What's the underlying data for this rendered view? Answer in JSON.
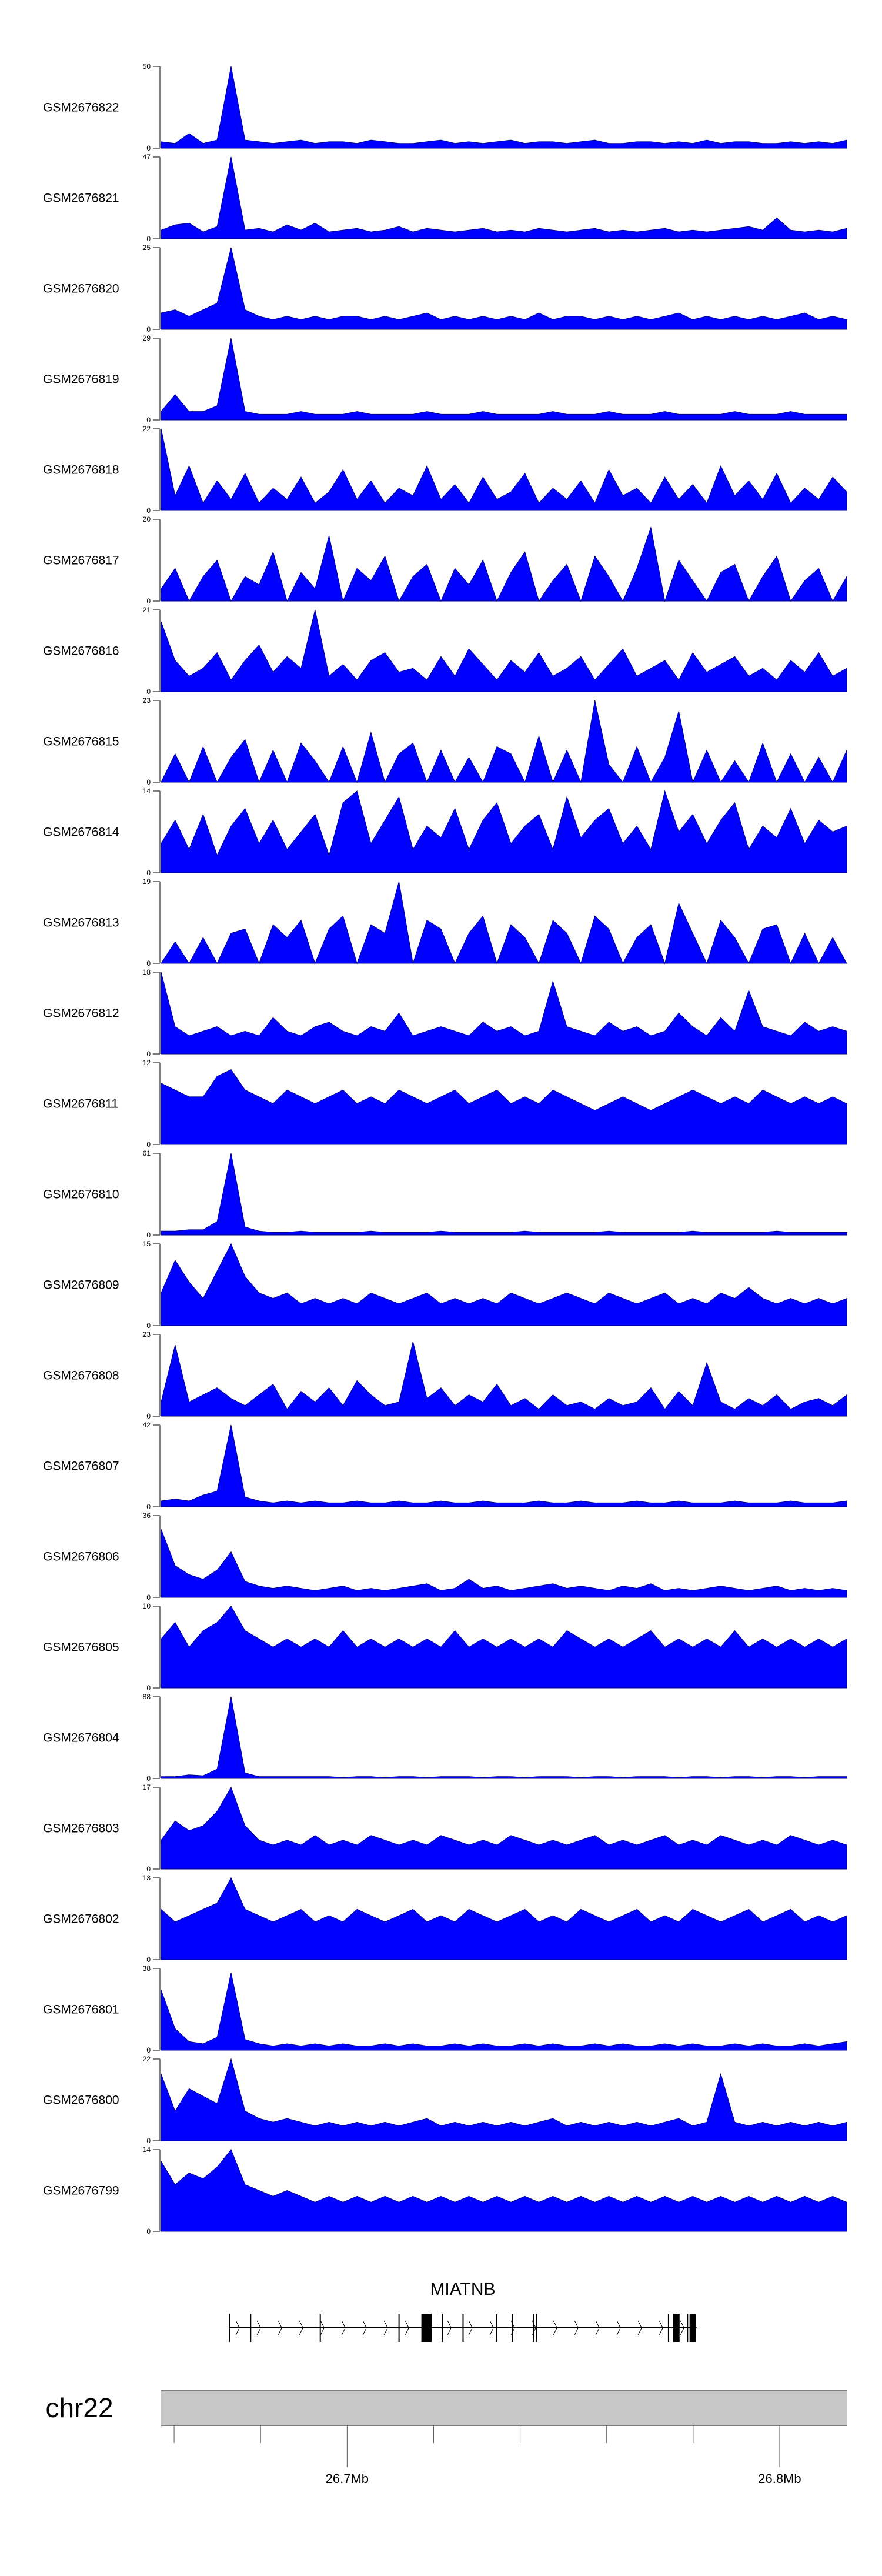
{
  "chart_data": {
    "type": "area",
    "title": "",
    "chromosome": "chr22",
    "xlim_mb": [
      26.657,
      26.8155
    ],
    "x_major_ticks": [
      {
        "value": 26.7,
        "label": "26.7Mb"
      },
      {
        "value": 26.8,
        "label": "26.8Mb"
      }
    ],
    "x_minor_ticks": [
      26.68,
      26.72,
      26.74,
      26.76,
      26.78
    ],
    "fill_color": "#0000ff",
    "stroke_color": "#00008b",
    "gene": {
      "name": "MIATNB",
      "strand": "+",
      "start": 26.6728,
      "end": 26.7808,
      "exons": [
        [
          26.6728,
          26.673
        ],
        [
          26.6777,
          26.6779
        ],
        [
          26.6938,
          26.694
        ],
        [
          26.712,
          26.7122
        ],
        [
          26.7173,
          26.7197
        ],
        [
          26.722,
          26.7223
        ],
        [
          26.7268,
          26.727
        ],
        [
          26.7345,
          26.7347
        ],
        [
          26.7382,
          26.7384
        ],
        [
          26.7431,
          26.7432
        ],
        [
          26.7438,
          26.7439
        ],
        [
          26.7743,
          26.7744
        ],
        [
          26.7755,
          26.777
        ],
        [
          26.7787,
          26.7788
        ],
        [
          26.7793,
          26.7808
        ]
      ]
    },
    "series": [
      {
        "name": "GSM2676822",
        "ymax": 50,
        "values": [
          4,
          3,
          9,
          3,
          5,
          50,
          5,
          4,
          3,
          4,
          5,
          3,
          4,
          4,
          3,
          5,
          4,
          3,
          3,
          4,
          5,
          3,
          4,
          3,
          4,
          5,
          3,
          4,
          4,
          3,
          4,
          5,
          3,
          3,
          4,
          4,
          3,
          4,
          3,
          5,
          3,
          4,
          4,
          3,
          3,
          4,
          3,
          4,
          3,
          5
        ]
      },
      {
        "name": "GSM2676821",
        "ymax": 47,
        "values": [
          5,
          8,
          9,
          4,
          7,
          47,
          5,
          6,
          4,
          8,
          5,
          9,
          4,
          5,
          6,
          4,
          5,
          7,
          4,
          6,
          5,
          4,
          5,
          6,
          4,
          5,
          4,
          6,
          5,
          4,
          5,
          6,
          4,
          5,
          4,
          5,
          6,
          4,
          5,
          4,
          5,
          6,
          7,
          5,
          12,
          5,
          4,
          5,
          4,
          6
        ]
      },
      {
        "name": "GSM2676820",
        "ymax": 25,
        "values": [
          5,
          6,
          4,
          6,
          8,
          25,
          6,
          4,
          3,
          4,
          3,
          4,
          3,
          4,
          4,
          3,
          4,
          3,
          4,
          5,
          3,
          4,
          3,
          4,
          3,
          4,
          3,
          5,
          3,
          4,
          4,
          3,
          4,
          3,
          4,
          3,
          4,
          5,
          3,
          4,
          3,
          4,
          3,
          4,
          3,
          4,
          5,
          3,
          4,
          3
        ]
      },
      {
        "name": "GSM2676819",
        "ymax": 29,
        "values": [
          3,
          9,
          3,
          3,
          5,
          29,
          3,
          2,
          2,
          2,
          3,
          2,
          2,
          2,
          3,
          2,
          2,
          2,
          2,
          3,
          2,
          2,
          2,
          3,
          2,
          2,
          2,
          2,
          3,
          2,
          2,
          2,
          3,
          2,
          2,
          2,
          3,
          2,
          2,
          2,
          2,
          3,
          2,
          2,
          2,
          3,
          2,
          2,
          2,
          2
        ]
      },
      {
        "name": "GSM2676818",
        "ymax": 22,
        "values": [
          22,
          4,
          12,
          2,
          8,
          3,
          10,
          2,
          6,
          3,
          9,
          2,
          5,
          11,
          3,
          8,
          2,
          6,
          4,
          12,
          3,
          7,
          2,
          9,
          3,
          5,
          10,
          2,
          6,
          3,
          8,
          2,
          11,
          4,
          6,
          2,
          9,
          3,
          7,
          2,
          12,
          4,
          8,
          3,
          10,
          2,
          6,
          3,
          9,
          5
        ]
      },
      {
        "name": "GSM2676817",
        "ymax": 20,
        "values": [
          3,
          8,
          0,
          6,
          10,
          0,
          6,
          4,
          12,
          0,
          7,
          3,
          16,
          0,
          8,
          5,
          11,
          0,
          6,
          9,
          0,
          8,
          4,
          10,
          0,
          7,
          12,
          0,
          5,
          9,
          0,
          11,
          6,
          0,
          8,
          18,
          0,
          10,
          5,
          0,
          7,
          9,
          0,
          6,
          11,
          0,
          5,
          8,
          0,
          6
        ]
      },
      {
        "name": "GSM2676816",
        "ymax": 21,
        "values": [
          18,
          8,
          4,
          6,
          10,
          3,
          8,
          12,
          5,
          9,
          6,
          21,
          4,
          7,
          3,
          8,
          10,
          5,
          6,
          3,
          9,
          4,
          11,
          7,
          3,
          8,
          5,
          10,
          4,
          6,
          9,
          3,
          7,
          11,
          4,
          6,
          8,
          3,
          10,
          5,
          7,
          9,
          4,
          6,
          3,
          8,
          5,
          10,
          4,
          6
        ]
      },
      {
        "name": "GSM2676815",
        "ymax": 23,
        "values": [
          0,
          8,
          0,
          10,
          0,
          7,
          12,
          0,
          9,
          0,
          11,
          6,
          0,
          10,
          0,
          14,
          0,
          8,
          11,
          0,
          9,
          0,
          7,
          0,
          10,
          8,
          0,
          13,
          0,
          9,
          0,
          23,
          5,
          0,
          10,
          0,
          7,
          20,
          0,
          9,
          0,
          6,
          0,
          11,
          0,
          8,
          0,
          7,
          0,
          9
        ]
      },
      {
        "name": "GSM2676814",
        "ymax": 14,
        "values": [
          5,
          9,
          4,
          10,
          3,
          8,
          11,
          5,
          9,
          4,
          7,
          10,
          3,
          12,
          14,
          5,
          9,
          13,
          4,
          8,
          6,
          11,
          4,
          9,
          12,
          5,
          8,
          10,
          4,
          13,
          6,
          9,
          11,
          5,
          8,
          4,
          14,
          7,
          10,
          5,
          9,
          12,
          4,
          8,
          6,
          11,
          5,
          9,
          7,
          8
        ]
      },
      {
        "name": "GSM2676813",
        "ymax": 19,
        "values": [
          0,
          5,
          0,
          6,
          0,
          7,
          8,
          0,
          9,
          6,
          10,
          0,
          8,
          11,
          0,
          9,
          7,
          19,
          0,
          10,
          8,
          0,
          7,
          11,
          0,
          9,
          6,
          0,
          10,
          7,
          0,
          11,
          8,
          0,
          6,
          9,
          0,
          14,
          7,
          0,
          10,
          6,
          0,
          8,
          9,
          0,
          7,
          0,
          6,
          0
        ]
      },
      {
        "name": "GSM2676812",
        "ymax": 18,
        "values": [
          18,
          6,
          4,
          5,
          6,
          4,
          5,
          4,
          8,
          5,
          4,
          6,
          7,
          5,
          4,
          6,
          5,
          9,
          4,
          5,
          6,
          5,
          4,
          7,
          5,
          6,
          4,
          5,
          16,
          6,
          5,
          4,
          7,
          5,
          6,
          4,
          5,
          9,
          6,
          4,
          8,
          5,
          14,
          6,
          5,
          4,
          7,
          5,
          6,
          5
        ]
      },
      {
        "name": "GSM2676811",
        "ymax": 12,
        "values": [
          9,
          8,
          7,
          7,
          10,
          11,
          8,
          7,
          6,
          8,
          7,
          6,
          7,
          8,
          6,
          7,
          6,
          8,
          7,
          6,
          7,
          8,
          6,
          7,
          8,
          6,
          7,
          6,
          8,
          7,
          6,
          5,
          6,
          7,
          6,
          5,
          6,
          7,
          8,
          7,
          6,
          7,
          6,
          8,
          7,
          6,
          7,
          6,
          7,
          6
        ]
      },
      {
        "name": "GSM2676810",
        "ymax": 61,
        "values": [
          3,
          3,
          4,
          4,
          10,
          61,
          6,
          3,
          2,
          2,
          3,
          2,
          2,
          2,
          2,
          3,
          2,
          2,
          2,
          2,
          3,
          2,
          2,
          2,
          2,
          2,
          3,
          2,
          2,
          2,
          2,
          2,
          3,
          2,
          2,
          2,
          2,
          2,
          3,
          2,
          2,
          2,
          2,
          2,
          3,
          2,
          2,
          2,
          2,
          2
        ]
      },
      {
        "name": "GSM2676809",
        "ymax": 15,
        "values": [
          6,
          12,
          8,
          5,
          10,
          15,
          9,
          6,
          5,
          6,
          4,
          5,
          4,
          5,
          4,
          6,
          5,
          4,
          5,
          6,
          4,
          5,
          4,
          5,
          4,
          6,
          5,
          4,
          5,
          6,
          5,
          4,
          6,
          5,
          4,
          5,
          6,
          4,
          5,
          4,
          6,
          5,
          7,
          5,
          4,
          5,
          4,
          5,
          4,
          5
        ]
      },
      {
        "name": "GSM2676808",
        "ymax": 23,
        "values": [
          4,
          20,
          4,
          6,
          8,
          5,
          3,
          6,
          9,
          2,
          7,
          4,
          8,
          3,
          10,
          6,
          3,
          4,
          21,
          5,
          8,
          3,
          6,
          4,
          9,
          3,
          5,
          2,
          6,
          3,
          4,
          2,
          5,
          3,
          4,
          8,
          2,
          7,
          3,
          15,
          4,
          2,
          5,
          3,
          6,
          2,
          4,
          5,
          3,
          6
        ]
      },
      {
        "name": "GSM2676807",
        "ymax": 42,
        "values": [
          3,
          4,
          3,
          6,
          8,
          42,
          5,
          3,
          2,
          3,
          2,
          3,
          2,
          2,
          3,
          2,
          2,
          3,
          2,
          2,
          3,
          2,
          2,
          3,
          2,
          2,
          2,
          3,
          2,
          2,
          3,
          2,
          2,
          2,
          3,
          2,
          2,
          3,
          2,
          2,
          2,
          3,
          2,
          2,
          2,
          3,
          2,
          2,
          2,
          3
        ]
      },
      {
        "name": "GSM2676806",
        "ymax": 36,
        "values": [
          30,
          14,
          10,
          8,
          12,
          20,
          7,
          5,
          4,
          5,
          4,
          3,
          4,
          5,
          3,
          4,
          3,
          4,
          5,
          6,
          3,
          4,
          8,
          4,
          5,
          3,
          4,
          5,
          6,
          4,
          5,
          4,
          3,
          5,
          4,
          6,
          3,
          4,
          3,
          4,
          5,
          4,
          3,
          4,
          5,
          3,
          4,
          3,
          4,
          3
        ]
      },
      {
        "name": "GSM2676805",
        "ymax": 10,
        "values": [
          6,
          8,
          5,
          7,
          8,
          10,
          7,
          6,
          5,
          6,
          5,
          6,
          5,
          7,
          5,
          6,
          5,
          6,
          5,
          6,
          5,
          7,
          5,
          6,
          5,
          6,
          5,
          6,
          5,
          7,
          6,
          5,
          6,
          5,
          6,
          7,
          5,
          6,
          5,
          6,
          5,
          7,
          5,
          6,
          5,
          6,
          5,
          6,
          5,
          6
        ]
      },
      {
        "name": "GSM2676804",
        "ymax": 88,
        "values": [
          2,
          2,
          4,
          3,
          10,
          88,
          6,
          2,
          2,
          2,
          2,
          2,
          2,
          1,
          2,
          2,
          1,
          2,
          2,
          1,
          2,
          2,
          2,
          1,
          2,
          2,
          1,
          2,
          2,
          2,
          1,
          2,
          2,
          1,
          2,
          2,
          2,
          1,
          2,
          2,
          1,
          2,
          2,
          1,
          2,
          2,
          1,
          2,
          2,
          2
        ]
      },
      {
        "name": "GSM2676803",
        "ymax": 17,
        "values": [
          6,
          10,
          8,
          9,
          12,
          17,
          9,
          6,
          5,
          6,
          5,
          7,
          5,
          6,
          5,
          7,
          6,
          5,
          6,
          5,
          7,
          6,
          5,
          6,
          5,
          7,
          6,
          5,
          6,
          5,
          6,
          7,
          5,
          6,
          5,
          6,
          7,
          5,
          6,
          5,
          7,
          6,
          5,
          6,
          5,
          7,
          6,
          5,
          6,
          5
        ]
      },
      {
        "name": "GSM2676802",
        "ymax": 13,
        "values": [
          8,
          6,
          7,
          8,
          9,
          13,
          8,
          7,
          6,
          7,
          8,
          6,
          7,
          6,
          8,
          7,
          6,
          7,
          8,
          6,
          7,
          6,
          8,
          7,
          6,
          7,
          8,
          6,
          7,
          6,
          8,
          7,
          6,
          7,
          8,
          6,
          7,
          6,
          8,
          7,
          6,
          7,
          8,
          6,
          7,
          8,
          6,
          7,
          6,
          7
        ]
      },
      {
        "name": "GSM2676801",
        "ymax": 38,
        "values": [
          28,
          10,
          4,
          3,
          6,
          36,
          5,
          3,
          2,
          3,
          2,
          3,
          2,
          3,
          2,
          2,
          3,
          2,
          3,
          2,
          2,
          3,
          2,
          3,
          2,
          2,
          3,
          2,
          3,
          2,
          2,
          3,
          2,
          3,
          2,
          2,
          3,
          2,
          3,
          2,
          2,
          3,
          2,
          3,
          2,
          2,
          3,
          2,
          3,
          4
        ]
      },
      {
        "name": "GSM2676800",
        "ymax": 22,
        "values": [
          18,
          8,
          14,
          12,
          10,
          22,
          8,
          6,
          5,
          6,
          5,
          4,
          5,
          4,
          5,
          4,
          5,
          4,
          5,
          6,
          4,
          5,
          4,
          5,
          4,
          5,
          4,
          5,
          6,
          4,
          5,
          4,
          5,
          4,
          5,
          4,
          5,
          6,
          4,
          5,
          18,
          5,
          4,
          5,
          4,
          5,
          4,
          5,
          4,
          5
        ]
      },
      {
        "name": "GSM2676799",
        "ymax": 14,
        "values": [
          12,
          8,
          10,
          9,
          11,
          14,
          8,
          7,
          6,
          7,
          6,
          5,
          6,
          5,
          6,
          5,
          6,
          5,
          6,
          5,
          6,
          5,
          6,
          5,
          6,
          5,
          6,
          5,
          6,
          5,
          6,
          5,
          6,
          5,
          6,
          5,
          6,
          5,
          6,
          5,
          6,
          5,
          6,
          5,
          6,
          5,
          6,
          5,
          6,
          5
        ]
      }
    ]
  }
}
